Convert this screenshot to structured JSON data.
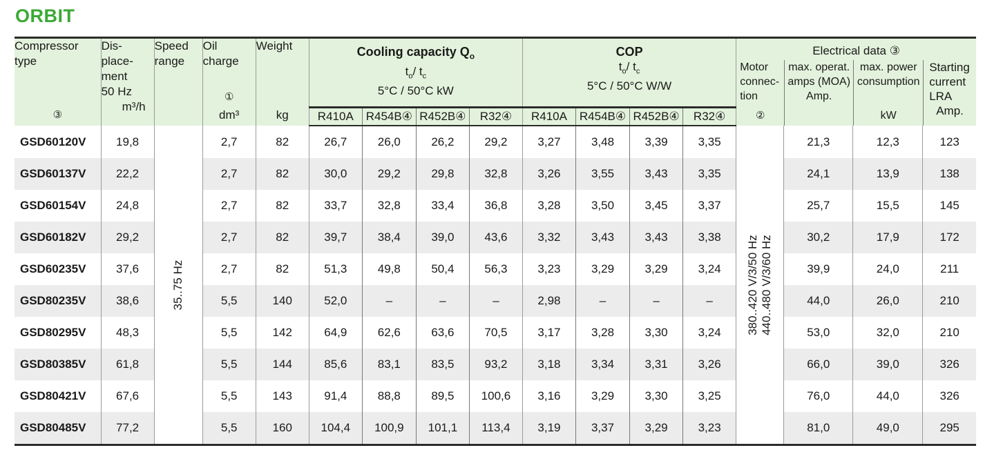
{
  "title": "ORBIT",
  "header": {
    "compressor": [
      "Compressor",
      "type"
    ],
    "compressor_ref": "③",
    "displacement": [
      "Dis-",
      "place-",
      "ment",
      "50 Hz"
    ],
    "displacement_unit": "m³/h",
    "speed": [
      "Speed",
      "range"
    ],
    "oil": [
      "Oil",
      "charge"
    ],
    "oil_ref": "①",
    "oil_unit": "dm³",
    "weight": "Weight",
    "weight_unit": "kg",
    "cooling_title": "Cooling capacity Q",
    "cooling_title_sub": "o",
    "cooling_cond": "5°C / 50°C kW",
    "cop_title": "COP",
    "cop_cond": "5°C / 50°C W/W",
    "to_tc": [
      "t",
      "o",
      "/ t",
      "c"
    ],
    "refrigerants": [
      "R410A",
      "R454B④",
      "R452B④",
      "R32④"
    ],
    "electrical_title": "Electrical data ③",
    "motor": [
      "Motor",
      "connec-",
      "tion"
    ],
    "motor_ref": "②",
    "moa": [
      "max. operat.",
      "amps (MOA)",
      "Amp."
    ],
    "power": [
      "max. power",
      "consumption"
    ],
    "power_unit": "kW",
    "starting": [
      "Starting",
      "current",
      "LRA",
      "Amp."
    ]
  },
  "speed_range": "35..75 Hz",
  "motor_connection": [
    "380..420 V/3/50 Hz",
    "440..480 V/3/60 Hz"
  ],
  "rows": [
    {
      "model": "GSD60120V",
      "disp": "19,8",
      "oil": "2,7",
      "weight": "82",
      "cc": [
        "26,7",
        "26,0",
        "26,2",
        "29,2"
      ],
      "cop": [
        "3,27",
        "3,48",
        "3,39",
        "3,35"
      ],
      "moa": "21,3",
      "kw": "12,3",
      "lra": "123"
    },
    {
      "model": "GSD60137V",
      "disp": "22,2",
      "oil": "2,7",
      "weight": "82",
      "cc": [
        "30,0",
        "29,2",
        "29,8",
        "32,8"
      ],
      "cop": [
        "3,26",
        "3,55",
        "3,43",
        "3,35"
      ],
      "moa": "24,1",
      "kw": "13,9",
      "lra": "138"
    },
    {
      "model": "GSD60154V",
      "disp": "24,8",
      "oil": "2,7",
      "weight": "82",
      "cc": [
        "33,7",
        "32,8",
        "33,4",
        "36,8"
      ],
      "cop": [
        "3,28",
        "3,50",
        "3,45",
        "3,37"
      ],
      "moa": "25,7",
      "kw": "15,5",
      "lra": "145"
    },
    {
      "model": "GSD60182V",
      "disp": "29,2",
      "oil": "2,7",
      "weight": "82",
      "cc": [
        "39,7",
        "38,4",
        "39,0",
        "43,6"
      ],
      "cop": [
        "3,32",
        "3,43",
        "3,43",
        "3,38"
      ],
      "moa": "30,2",
      "kw": "17,9",
      "lra": "172"
    },
    {
      "model": "GSD60235V",
      "disp": "37,6",
      "oil": "2,7",
      "weight": "82",
      "cc": [
        "51,3",
        "49,8",
        "50,4",
        "56,3"
      ],
      "cop": [
        "3,23",
        "3,29",
        "3,29",
        "3,24"
      ],
      "moa": "39,9",
      "kw": "24,0",
      "lra": "211"
    },
    {
      "model": "GSD80235V",
      "disp": "38,6",
      "oil": "5,5",
      "weight": "140",
      "cc": [
        "52,0",
        "–",
        "–",
        "–"
      ],
      "cop": [
        "2,98",
        "–",
        "–",
        "–"
      ],
      "moa": "44,0",
      "kw": "26,0",
      "lra": "210"
    },
    {
      "model": "GSD80295V",
      "disp": "48,3",
      "oil": "5,5",
      "weight": "142",
      "cc": [
        "64,9",
        "62,6",
        "63,6",
        "70,5"
      ],
      "cop": [
        "3,17",
        "3,28",
        "3,30",
        "3,24"
      ],
      "moa": "53,0",
      "kw": "32,0",
      "lra": "210"
    },
    {
      "model": "GSD80385V",
      "disp": "61,8",
      "oil": "5,5",
      "weight": "144",
      "cc": [
        "85,6",
        "83,1",
        "83,5",
        "93,2"
      ],
      "cop": [
        "3,18",
        "3,34",
        "3,31",
        "3,26"
      ],
      "moa": "66,0",
      "kw": "39,0",
      "lra": "326"
    },
    {
      "model": "GSD80421V",
      "disp": "67,6",
      "oil": "5,5",
      "weight": "143",
      "cc": [
        "91,4",
        "88,8",
        "89,5",
        "100,6"
      ],
      "cop": [
        "3,16",
        "3,29",
        "3,30",
        "3,25"
      ],
      "moa": "76,0",
      "kw": "44,0",
      "lra": "326"
    },
    {
      "model": "GSD80485V",
      "disp": "77,2",
      "oil": "5,5",
      "weight": "160",
      "cc": [
        "104,4",
        "100,9",
        "101,1",
        "113,4"
      ],
      "cop": [
        "3,19",
        "3,37",
        "3,29",
        "3,23"
      ],
      "moa": "81,0",
      "kw": "49,0",
      "lra": "295"
    }
  ],
  "colors": {
    "brand_green": "#3aa935",
    "header_bg": "#e3f2dc",
    "stripe": "#ececec"
  }
}
